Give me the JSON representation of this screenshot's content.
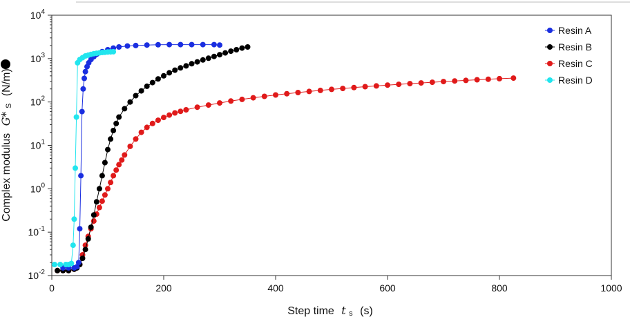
{
  "chart_data": {
    "type": "scatter",
    "xlabel_main": "Step time",
    "xlabel_symbol": "t",
    "xlabel_sub": "s",
    "xlabel_unit": "(s)",
    "ylabel_main": "Complex modulus",
    "ylabel_symbol": "G*",
    "ylabel_sub": "S",
    "ylabel_unit": "(N/m)",
    "xlim": [
      0,
      1000
    ],
    "ylim": [
      0.01,
      10000
    ],
    "yscale": "log",
    "x_ticks": [
      0,
      200,
      400,
      600,
      800,
      1000
    ],
    "x_tick_labels": [
      "0",
      "200",
      "400",
      "600",
      "800",
      "1000"
    ],
    "y_ticks": [
      0.01,
      0.1,
      1,
      10,
      100,
      1000,
      10000
    ],
    "y_tick_labels": [
      {
        "base": "10",
        "exp": "-2"
      },
      {
        "base": "10",
        "exp": "-1"
      },
      {
        "base": "10",
        "exp": "0"
      },
      {
        "base": "10",
        "exp": "1"
      },
      {
        "base": "10",
        "exp": "2"
      },
      {
        "base": "10",
        "exp": "3"
      },
      {
        "base": "10",
        "exp": "4"
      }
    ],
    "grid": false,
    "legend_position": "top-right",
    "series": [
      {
        "name": "Resin A",
        "color": "#1a2ee0",
        "points": [
          [
            20,
            0.015
          ],
          [
            30,
            0.015
          ],
          [
            40,
            0.015
          ],
          [
            45,
            0.016
          ],
          [
            48,
            0.02
          ],
          [
            50,
            0.12
          ],
          [
            52,
            2
          ],
          [
            54,
            60
          ],
          [
            56,
            200
          ],
          [
            58,
            350
          ],
          [
            60,
            500
          ],
          [
            63,
            650
          ],
          [
            66,
            800
          ],
          [
            70,
            950
          ],
          [
            75,
            1100
          ],
          [
            80,
            1250
          ],
          [
            90,
            1450
          ],
          [
            100,
            1600
          ],
          [
            110,
            1750
          ],
          [
            120,
            1850
          ],
          [
            135,
            1950
          ],
          [
            150,
            2000
          ],
          [
            170,
            2050
          ],
          [
            190,
            2080
          ],
          [
            210,
            2100
          ],
          [
            230,
            2100
          ],
          [
            250,
            2100
          ],
          [
            270,
            2100
          ],
          [
            290,
            2100
          ],
          [
            300,
            2050
          ]
        ]
      },
      {
        "name": "Resin B",
        "color": "#000000",
        "points": [
          [
            10,
            0.013
          ],
          [
            20,
            0.013
          ],
          [
            30,
            0.013
          ],
          [
            40,
            0.014
          ],
          [
            45,
            0.015
          ],
          [
            50,
            0.018
          ],
          [
            55,
            0.025
          ],
          [
            60,
            0.04
          ],
          [
            65,
            0.07
          ],
          [
            70,
            0.13
          ],
          [
            75,
            0.25
          ],
          [
            80,
            0.5
          ],
          [
            85,
            1
          ],
          [
            90,
            2
          ],
          [
            95,
            4
          ],
          [
            100,
            8
          ],
          [
            105,
            14
          ],
          [
            110,
            22
          ],
          [
            115,
            32
          ],
          [
            120,
            45
          ],
          [
            130,
            70
          ],
          [
            140,
            100
          ],
          [
            150,
            140
          ],
          [
            160,
            180
          ],
          [
            170,
            230
          ],
          [
            180,
            280
          ],
          [
            190,
            340
          ],
          [
            200,
            400
          ],
          [
            210,
            470
          ],
          [
            220,
            540
          ],
          [
            230,
            610
          ],
          [
            240,
            680
          ],
          [
            250,
            760
          ],
          [
            260,
            840
          ],
          [
            270,
            930
          ],
          [
            280,
            1020
          ],
          [
            290,
            1120
          ],
          [
            300,
            1230
          ],
          [
            310,
            1350
          ],
          [
            320,
            1480
          ],
          [
            330,
            1600
          ],
          [
            340,
            1750
          ],
          [
            350,
            1850
          ]
        ]
      },
      {
        "name": "Resin C",
        "color": "#e01a1a",
        "points": [
          [
            10,
            0.013
          ],
          [
            20,
            0.013
          ],
          [
            30,
            0.013
          ],
          [
            40,
            0.014
          ],
          [
            50,
            0.018
          ],
          [
            55,
            0.03
          ],
          [
            60,
            0.05
          ],
          [
            65,
            0.08
          ],
          [
            70,
            0.12
          ],
          [
            75,
            0.18
          ],
          [
            80,
            0.26
          ],
          [
            85,
            0.37
          ],
          [
            90,
            0.52
          ],
          [
            95,
            0.72
          ],
          [
            100,
            1
          ],
          [
            105,
            1.4
          ],
          [
            110,
            2
          ],
          [
            115,
            2.7
          ],
          [
            120,
            3.6
          ],
          [
            125,
            4.6
          ],
          [
            130,
            6
          ],
          [
            140,
            9.5
          ],
          [
            150,
            14
          ],
          [
            160,
            20
          ],
          [
            170,
            26
          ],
          [
            180,
            32
          ],
          [
            190,
            38
          ],
          [
            200,
            44
          ],
          [
            210,
            50
          ],
          [
            220,
            56
          ],
          [
            230,
            61
          ],
          [
            240,
            66
          ],
          [
            260,
            76
          ],
          [
            280,
            85
          ],
          [
            300,
            95
          ],
          [
            320,
            105
          ],
          [
            340,
            115
          ],
          [
            360,
            125
          ],
          [
            380,
            135
          ],
          [
            400,
            145
          ],
          [
            420,
            155
          ],
          [
            440,
            165
          ],
          [
            460,
            175
          ],
          [
            480,
            185
          ],
          [
            500,
            195
          ],
          [
            520,
            205
          ],
          [
            540,
            215
          ],
          [
            560,
            225
          ],
          [
            580,
            235
          ],
          [
            600,
            245
          ],
          [
            620,
            255
          ],
          [
            640,
            265
          ],
          [
            660,
            275
          ],
          [
            680,
            285
          ],
          [
            700,
            295
          ],
          [
            720,
            305
          ],
          [
            740,
            315
          ],
          [
            760,
            325
          ],
          [
            780,
            335
          ],
          [
            800,
            345
          ],
          [
            825,
            355
          ]
        ]
      },
      {
        "name": "Resin D",
        "color": "#22e5ee",
        "points": [
          [
            5,
            0.018
          ],
          [
            15,
            0.018
          ],
          [
            25,
            0.018
          ],
          [
            30,
            0.018
          ],
          [
            35,
            0.019
          ],
          [
            38,
            0.05
          ],
          [
            40,
            0.2
          ],
          [
            42,
            3
          ],
          [
            44,
            45
          ],
          [
            46,
            800
          ],
          [
            50,
            950
          ],
          [
            55,
            1050
          ],
          [
            60,
            1150
          ],
          [
            65,
            1200
          ],
          [
            70,
            1250
          ],
          [
            75,
            1300
          ],
          [
            80,
            1330
          ],
          [
            85,
            1350
          ],
          [
            90,
            1380
          ],
          [
            95,
            1400
          ],
          [
            100,
            1420
          ],
          [
            105,
            1430
          ],
          [
            110,
            1440
          ]
        ]
      }
    ]
  }
}
